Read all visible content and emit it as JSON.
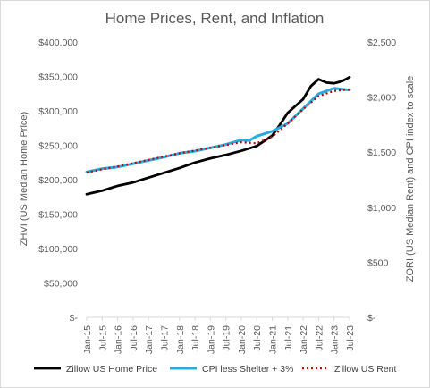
{
  "chart_data": {
    "type": "line",
    "title": "Home Prices, Rent, and Inflation",
    "ylabel": "ZHVI (US Median Home Price)",
    "y2label": "ZORI (US Median Rent) and CPI index to scale",
    "ylim": [
      0,
      400000
    ],
    "y2lim": [
      0,
      2500
    ],
    "y_ticks": [
      "$-",
      "$50,000",
      "$100,000",
      "$150,000",
      "$200,000",
      "$250,000",
      "$300,000",
      "$350,000",
      "$400,000"
    ],
    "y2_ticks": [
      "$-",
      "$500",
      "$1,000",
      "$1,500",
      "$2,000",
      "$2,500"
    ],
    "x_ticks": [
      "Jan-15",
      "Jul-15",
      "Jan-16",
      "Jul-16",
      "Jan-17",
      "Jul-17",
      "Jan-18",
      "Jul-18",
      "Jan-19",
      "Jul-19",
      "Jan-20",
      "Jul-20",
      "Jan-21",
      "Jul-21",
      "Jan-22",
      "Jul-22",
      "Jan-23",
      "Jul-23"
    ],
    "grid": false,
    "legend": "bottom",
    "series": [
      {
        "name": "Zillow US Home Price",
        "axis": "left",
        "color": "#000000",
        "style": "solid",
        "x": [
          "Jan-15",
          "Jul-15",
          "Jan-16",
          "Jul-16",
          "Jan-17",
          "Jul-17",
          "Jan-18",
          "Jul-18",
          "Jan-19",
          "Jul-19",
          "Jan-20",
          "Jul-20",
          "Jan-21",
          "Apr-21",
          "Jul-21",
          "Oct-21",
          "Jan-22",
          "Apr-22",
          "Jul-22",
          "Oct-22",
          "Jan-23",
          "Apr-23",
          "Jul-23"
        ],
        "values": [
          179000,
          184000,
          191000,
          196000,
          203000,
          210000,
          217000,
          225000,
          231000,
          236000,
          242000,
          249000,
          264000,
          280000,
          297000,
          307000,
          317000,
          336000,
          346000,
          341000,
          340000,
          343000,
          349000
        ]
      },
      {
        "name": "CPI less Shelter + 3%",
        "axis": "right",
        "color": "#29abe2",
        "style": "solid",
        "x": [
          "Jan-15",
          "Jul-15",
          "Jan-16",
          "Jul-16",
          "Jan-17",
          "Jul-17",
          "Jan-18",
          "Jul-18",
          "Jan-19",
          "Jul-19",
          "Jan-20",
          "Apr-20",
          "Jul-20",
          "Jan-21",
          "Jul-21",
          "Jan-22",
          "Jul-22",
          "Jan-23",
          "Jul-23"
        ],
        "values": [
          1320,
          1350,
          1365,
          1395,
          1425,
          1455,
          1490,
          1510,
          1540,
          1570,
          1610,
          1605,
          1645,
          1690,
          1760,
          1895,
          2030,
          2080,
          2065
        ]
      },
      {
        "name": "Zillow US Rent",
        "axis": "right",
        "color": "#c00000",
        "style": "dotted",
        "x": [
          "Jan-15",
          "Jul-15",
          "Jan-16",
          "Jul-16",
          "Jan-17",
          "Jul-17",
          "Jan-18",
          "Jul-18",
          "Jan-19",
          "Jul-19",
          "Jan-20",
          "Jul-20",
          "Jan-21",
          "Jul-21",
          "Jan-22",
          "Jul-22",
          "Jan-23",
          "Jul-23"
        ],
        "values": [
          1315,
          1345,
          1370,
          1400,
          1430,
          1460,
          1490,
          1515,
          1540,
          1565,
          1590,
          1580,
          1640,
          1760,
          1890,
          2010,
          2055,
          2070
        ]
      }
    ]
  }
}
